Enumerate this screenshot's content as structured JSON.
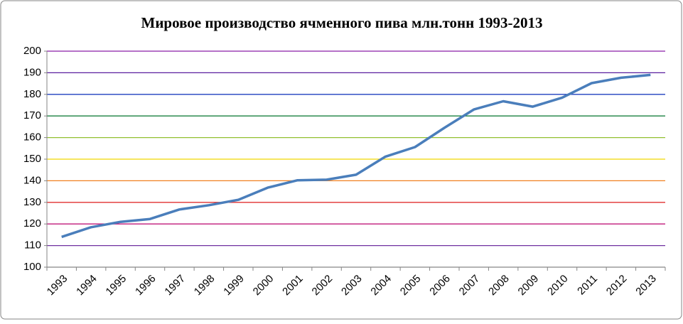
{
  "chart_data": {
    "type": "line",
    "title": "Мировое производство ячменного пива млн.тонн 1993-2013",
    "categories": [
      "1993",
      "1994",
      "1995",
      "1996",
      "1997",
      "1998",
      "1999",
      "2000",
      "2001",
      "2002",
      "2003",
      "2004",
      "2005",
      "2006",
      "2007",
      "2008",
      "2009",
      "2010",
      "2011",
      "2012",
      "2013"
    ],
    "series": [
      {
        "color": "#4a7ebb",
        "values": [
          114,
          118.5,
          121,
          122.3,
          126.7,
          128.7,
          131.2,
          136.8,
          140.2,
          140.5,
          142.8,
          151.2,
          155.6,
          164.5,
          173,
          176.8,
          174.3,
          178.5,
          185.2,
          187.7,
          189
        ]
      }
    ],
    "ylim": [
      100,
      200
    ],
    "yticks": [
      100,
      110,
      120,
      130,
      140,
      150,
      160,
      170,
      180,
      190,
      200
    ],
    "grid": true,
    "grid_colors": [
      "#868686",
      "#7030a0",
      "#c0187a",
      "#e03030",
      "#f08020",
      "#f0d800",
      "#92c030",
      "#1a8040",
      "#1f3fbf",
      "#5a1f9f",
      "#8b1fa8"
    ]
  }
}
